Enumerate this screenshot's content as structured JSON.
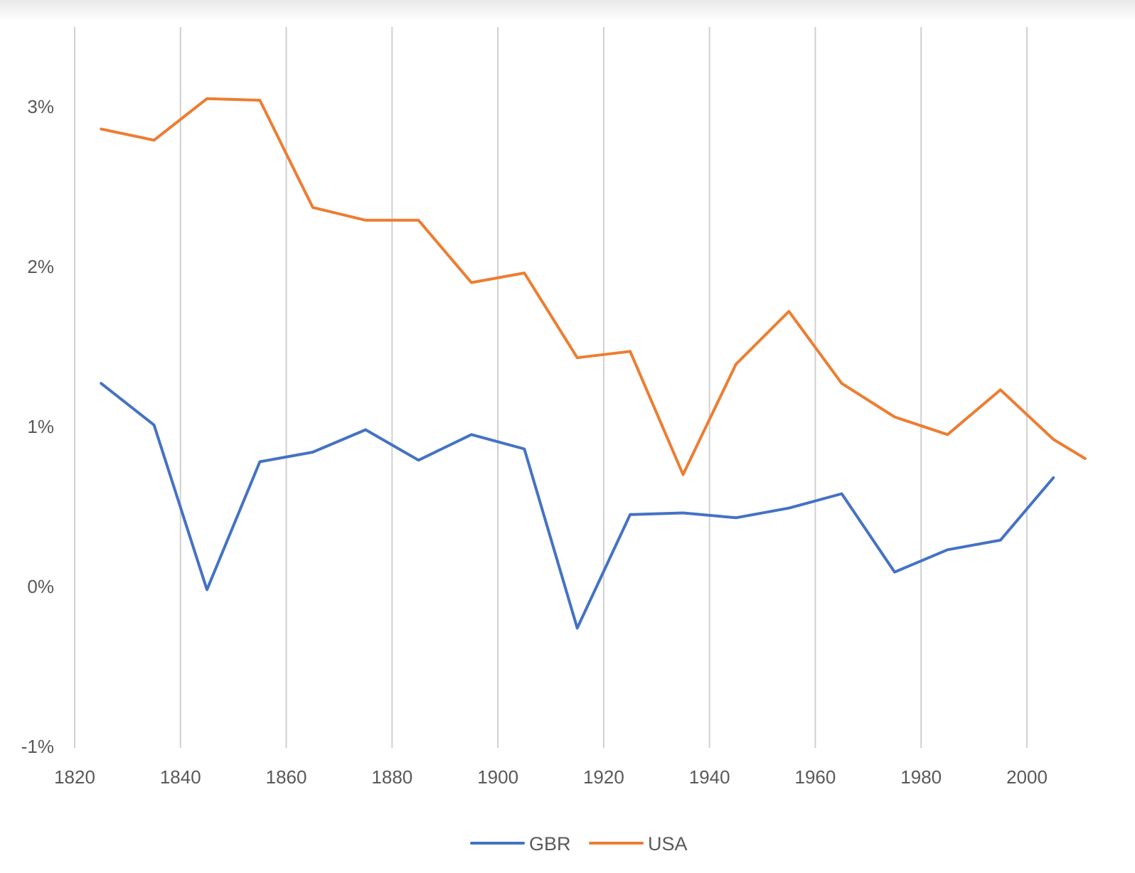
{
  "chart_data": {
    "type": "line",
    "title": "",
    "xlabel": "",
    "ylabel": "",
    "xlim": [
      1820,
      2011
    ],
    "ylim": [
      -0.01,
      0.035
    ],
    "x_ticks": [
      1820,
      1840,
      1860,
      1880,
      1900,
      1920,
      1940,
      1960,
      1980,
      2000
    ],
    "x_tick_labels": [
      "1820",
      "1840",
      "1860",
      "1880",
      "1900",
      "1920",
      "1940",
      "1960",
      "1980",
      "2000"
    ],
    "y_ticks": [
      -0.01,
      0.0,
      0.01,
      0.02,
      0.03
    ],
    "y_tick_labels": [
      "-1%",
      "0%",
      "1%",
      "2%",
      "3%"
    ],
    "grid": "vertical",
    "legend_position": "bottom",
    "series": [
      {
        "name": "GBR",
        "color": "#4472C4",
        "x": [
          1825,
          1835,
          1845,
          1855,
          1865,
          1875,
          1885,
          1895,
          1905,
          1915,
          1925,
          1935,
          1945,
          1955,
          1965,
          1975,
          1985,
          1995,
          2005
        ],
        "values": [
          0.0127,
          0.0101,
          -0.0002,
          0.0078,
          0.0084,
          0.0098,
          0.0079,
          0.0095,
          0.0086,
          -0.0026,
          0.0045,
          0.0046,
          0.0043,
          0.0049,
          0.0058,
          0.0009,
          0.0023,
          0.0029,
          0.0068
        ]
      },
      {
        "name": "USA",
        "color": "#ED7D31",
        "x": [
          1825,
          1835,
          1845,
          1855,
          1865,
          1875,
          1885,
          1895,
          1905,
          1915,
          1925,
          1935,
          1945,
          1955,
          1965,
          1975,
          1985,
          1995,
          2005,
          2011
        ],
        "values": [
          0.0286,
          0.0279,
          0.0305,
          0.0304,
          0.0237,
          0.0229,
          0.0229,
          0.019,
          0.0196,
          0.0143,
          0.0147,
          0.007,
          0.0139,
          0.0172,
          0.0127,
          0.0106,
          0.0095,
          0.0123,
          0.0092,
          0.008
        ]
      }
    ]
  }
}
